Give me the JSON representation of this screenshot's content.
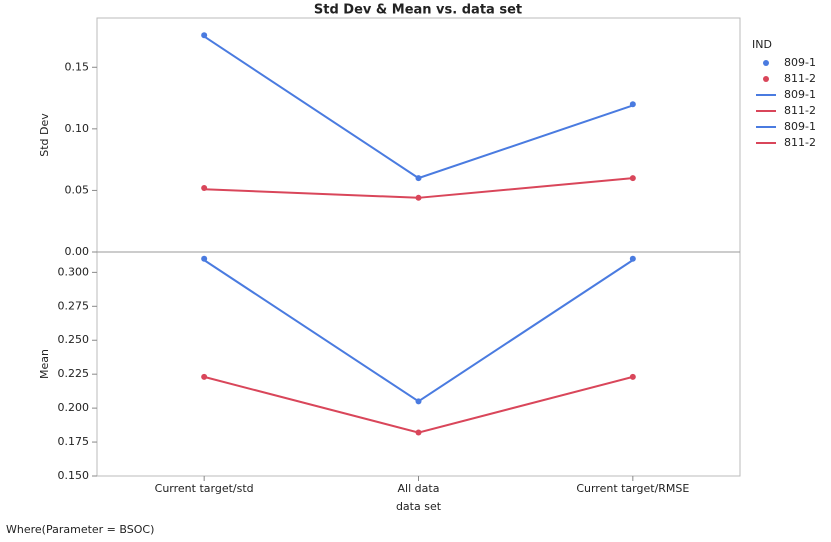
{
  "chart_data": [
    {
      "type": "line",
      "title": "Std Dev & Mean vs. data set",
      "ylabel": "Std Dev",
      "legend_title": "IND",
      "categories": [
        "Current target/std",
        "All data",
        "Current target/RMSE"
      ],
      "ylim": [
        0,
        0.19
      ],
      "yticks": [
        {
          "value": 0,
          "label": "0.00"
        },
        0.05,
        {
          "value": 0.1,
          "label": "0.10"
        },
        0.15
      ],
      "series": [
        {
          "name": "809-1",
          "mode": "markers",
          "color": "#4a7be0",
          "values": [
            0.176,
            0.06,
            0.12
          ]
        },
        {
          "name": "811-2",
          "mode": "markers",
          "color": "#d9465a",
          "values": [
            0.052,
            0.044,
            0.06
          ]
        },
        {
          "name": "809-1",
          "mode": "lines",
          "color": "#4a7be0",
          "values": [
            0.175,
            0.06,
            0.119
          ]
        },
        {
          "name": "811-2",
          "mode": "lines",
          "color": "#d9465a",
          "values": [
            0.051,
            0.044,
            0.06
          ]
        }
      ]
    },
    {
      "type": "line",
      "ylabel": "Mean",
      "xlabel": "data set",
      "categories": [
        "Current target/std",
        "All data",
        "Current target/RMSE"
      ],
      "ylim": [
        0.15,
        0.315
      ],
      "yticks": [
        {
          "value": 0.15,
          "label": "0.150"
        },
        0.175,
        {
          "value": 0.2,
          "label": "0.200"
        },
        0.225,
        {
          "value": 0.25,
          "label": "0.250"
        },
        0.275,
        {
          "value": 0.3,
          "label": "0.300"
        }
      ],
      "series": [
        {
          "name": "809-1",
          "mode": "markers",
          "color": "#4a7be0",
          "values": [
            0.31,
            0.205,
            0.31
          ]
        },
        {
          "name": "811-2",
          "mode": "markers",
          "color": "#d9465a",
          "values": [
            0.223,
            0.182,
            0.223
          ]
        },
        {
          "name": "809-1",
          "mode": "lines",
          "color": "#4a7be0",
          "values": [
            0.309,
            0.205,
            0.309
          ]
        },
        {
          "name": "811-2",
          "mode": "lines",
          "color": "#d9465a",
          "values": [
            0.223,
            0.182,
            0.223
          ]
        }
      ]
    }
  ],
  "footer": "Where(Parameter = BSOC)"
}
